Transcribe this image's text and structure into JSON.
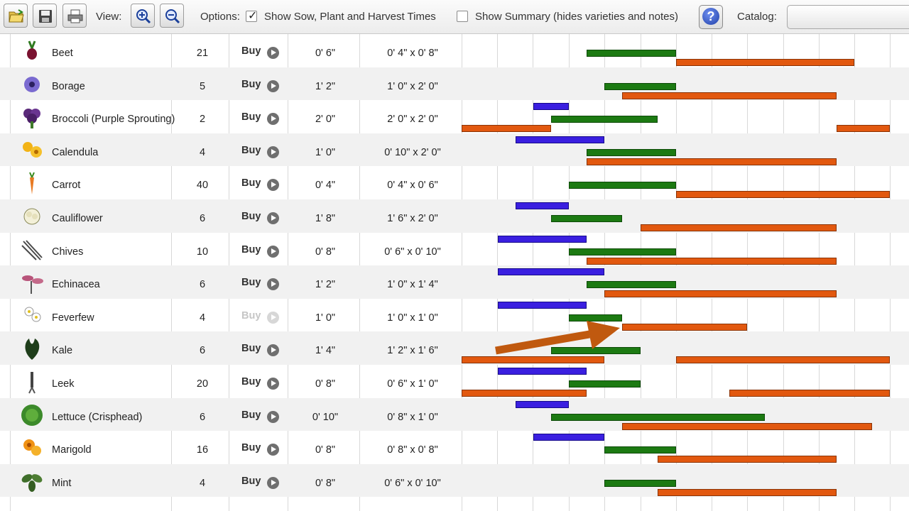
{
  "toolbar": {
    "view_label": "View:",
    "options_label": "Options:",
    "show_times_label": "Show Sow, Plant and Harvest Times",
    "show_times_checked": true,
    "show_summary_label": "Show Summary (hides varieties and notes)",
    "show_summary_checked": false,
    "catalog_label": "Catalog:",
    "icons": [
      "open-folder-icon",
      "save-icon",
      "print-icon",
      "zoom-in-icon",
      "zoom-out-icon",
      "help-icon"
    ]
  },
  "colors": {
    "sow": "#3a1fe0",
    "plant": "#1c7a12",
    "harvest": "#e2580f",
    "arrow": "#c0590f"
  },
  "rows": [
    {
      "name": "Beet",
      "qty": "21",
      "buy": "Buy",
      "buy_enabled": true,
      "spacing": "0' 6\"",
      "area": "0' 4\" x 0' 8\"",
      "icon": "beet-icon"
    },
    {
      "name": "Borage",
      "qty": "5",
      "buy": "Buy",
      "buy_enabled": true,
      "spacing": "1' 2\"",
      "area": "1' 0\" x 2' 0\"",
      "icon": "borage-icon"
    },
    {
      "name": "Broccoli (Purple Sprouting)",
      "qty": "2",
      "buy": "Buy",
      "buy_enabled": true,
      "spacing": "2' 0\"",
      "area": "2' 0\" x 2' 0\"",
      "icon": "broccoli-icon"
    },
    {
      "name": "Calendula",
      "qty": "4",
      "buy": "Buy",
      "buy_enabled": true,
      "spacing": "1' 0\"",
      "area": "0' 10\" x 2' 0\"",
      "icon": "calendula-icon"
    },
    {
      "name": "Carrot",
      "qty": "40",
      "buy": "Buy",
      "buy_enabled": true,
      "spacing": "0' 4\"",
      "area": "0' 4\" x 0' 6\"",
      "icon": "carrot-icon"
    },
    {
      "name": "Cauliflower",
      "qty": "6",
      "buy": "Buy",
      "buy_enabled": true,
      "spacing": "1' 8\"",
      "area": "1' 6\" x 2' 0\"",
      "icon": "cauliflower-icon"
    },
    {
      "name": "Chives",
      "qty": "10",
      "buy": "Buy",
      "buy_enabled": true,
      "spacing": "0' 8\"",
      "area": "0' 6\" x 0' 10\"",
      "icon": "chives-icon"
    },
    {
      "name": "Echinacea",
      "qty": "6",
      "buy": "Buy",
      "buy_enabled": true,
      "spacing": "1' 2\"",
      "area": "1' 0\" x 1' 4\"",
      "icon": "echinacea-icon"
    },
    {
      "name": "Feverfew",
      "qty": "4",
      "buy": "Buy",
      "buy_enabled": false,
      "spacing": "1' 0\"",
      "area": "1' 0\" x 1' 0\"",
      "icon": "feverfew-icon"
    },
    {
      "name": "Kale",
      "qty": "6",
      "buy": "Buy",
      "buy_enabled": true,
      "spacing": "1' 4\"",
      "area": "1' 2\" x 1' 6\"",
      "icon": "kale-icon"
    },
    {
      "name": "Leek",
      "qty": "20",
      "buy": "Buy",
      "buy_enabled": true,
      "spacing": "0' 8\"",
      "area": "0' 6\" x 1' 0\"",
      "icon": "leek-icon"
    },
    {
      "name": "Lettuce (Crisphead)",
      "qty": "6",
      "buy": "Buy",
      "buy_enabled": true,
      "spacing": "0' 10\"",
      "area": "0' 8\" x 1' 0\"",
      "icon": "lettuce-icon"
    },
    {
      "name": "Marigold",
      "qty": "16",
      "buy": "Buy",
      "buy_enabled": true,
      "spacing": "0' 8\"",
      "area": "0' 8\" x 0' 8\"",
      "icon": "marigold-icon"
    },
    {
      "name": "Mint",
      "qty": "4",
      "buy": "Buy",
      "buy_enabled": true,
      "spacing": "0' 8\"",
      "area": "0' 6\" x 0' 10\"",
      "icon": "mint-icon"
    }
  ]
}
